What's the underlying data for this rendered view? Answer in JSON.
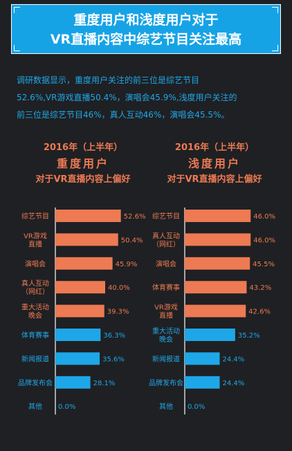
{
  "header": {
    "title_line1": "重度用户和浅度用户对于",
    "title_line2": "VR直播内容中综艺节目关注最高"
  },
  "summary": {
    "line1": "调研数据显示，重度用户关注的前三位是综艺节目",
    "line2": "52.6%,VR游戏直播50.4%，演唱会45.9%,浅度用户关注的",
    "line3": "前三位是综艺节目46%，真人互动46%，演唱会45.5%。"
  },
  "colors": {
    "banner": "#16a3e6",
    "highlight": "#ed7a53",
    "other": "#1ea7e8",
    "background": "#1f2023"
  },
  "chart_data": [
    {
      "type": "bar",
      "orientation": "horizontal",
      "year": "2016年（上半年）",
      "title": "重度用户",
      "subtitle": "对于VR直播内容上偏好",
      "categories": [
        [
          "综艺节目"
        ],
        [
          "VR游戏",
          "直播"
        ],
        [
          "演唱会"
        ],
        [
          "真人互动",
          "（网红）"
        ],
        [
          "重大活动",
          "晚会"
        ],
        [
          "体育赛事"
        ],
        [
          "新闻报道"
        ],
        [
          "品牌发布会"
        ],
        [
          "其他"
        ]
      ],
      "values": [
        52.6,
        50.4,
        45.9,
        40.0,
        39.3,
        36.3,
        35.6,
        28.1,
        0.0
      ],
      "value_labels": [
        "52.6%",
        "50.4%",
        "45.9%",
        "40.0%",
        "39.3%",
        "36.3%",
        "35.6%",
        "28.1%",
        "0.0%"
      ],
      "highlight_count": 5
    },
    {
      "type": "bar",
      "orientation": "horizontal",
      "year": "2016年（上半年）",
      "title": "浅度用户",
      "subtitle": "对于VR直播内容上偏好",
      "categories": [
        [
          "综艺节目"
        ],
        [
          "真人互动",
          "（网红）"
        ],
        [
          "演唱会"
        ],
        [
          "体育赛事"
        ],
        [
          "VR游戏",
          "直播"
        ],
        [
          "重大活动",
          "晚会"
        ],
        [
          "新闻报道"
        ],
        [
          "品牌发布会"
        ],
        [
          "其他"
        ]
      ],
      "values": [
        46.0,
        46.0,
        45.5,
        43.2,
        42.6,
        35.2,
        24.4,
        24.4,
        0.0
      ],
      "value_labels": [
        "46.0%",
        "46.0%",
        "45.5%",
        "43.2%",
        "42.6%",
        "35.2%",
        "24.4%",
        "24.4%",
        "0.0%"
      ],
      "highlight_count": 5
    }
  ]
}
